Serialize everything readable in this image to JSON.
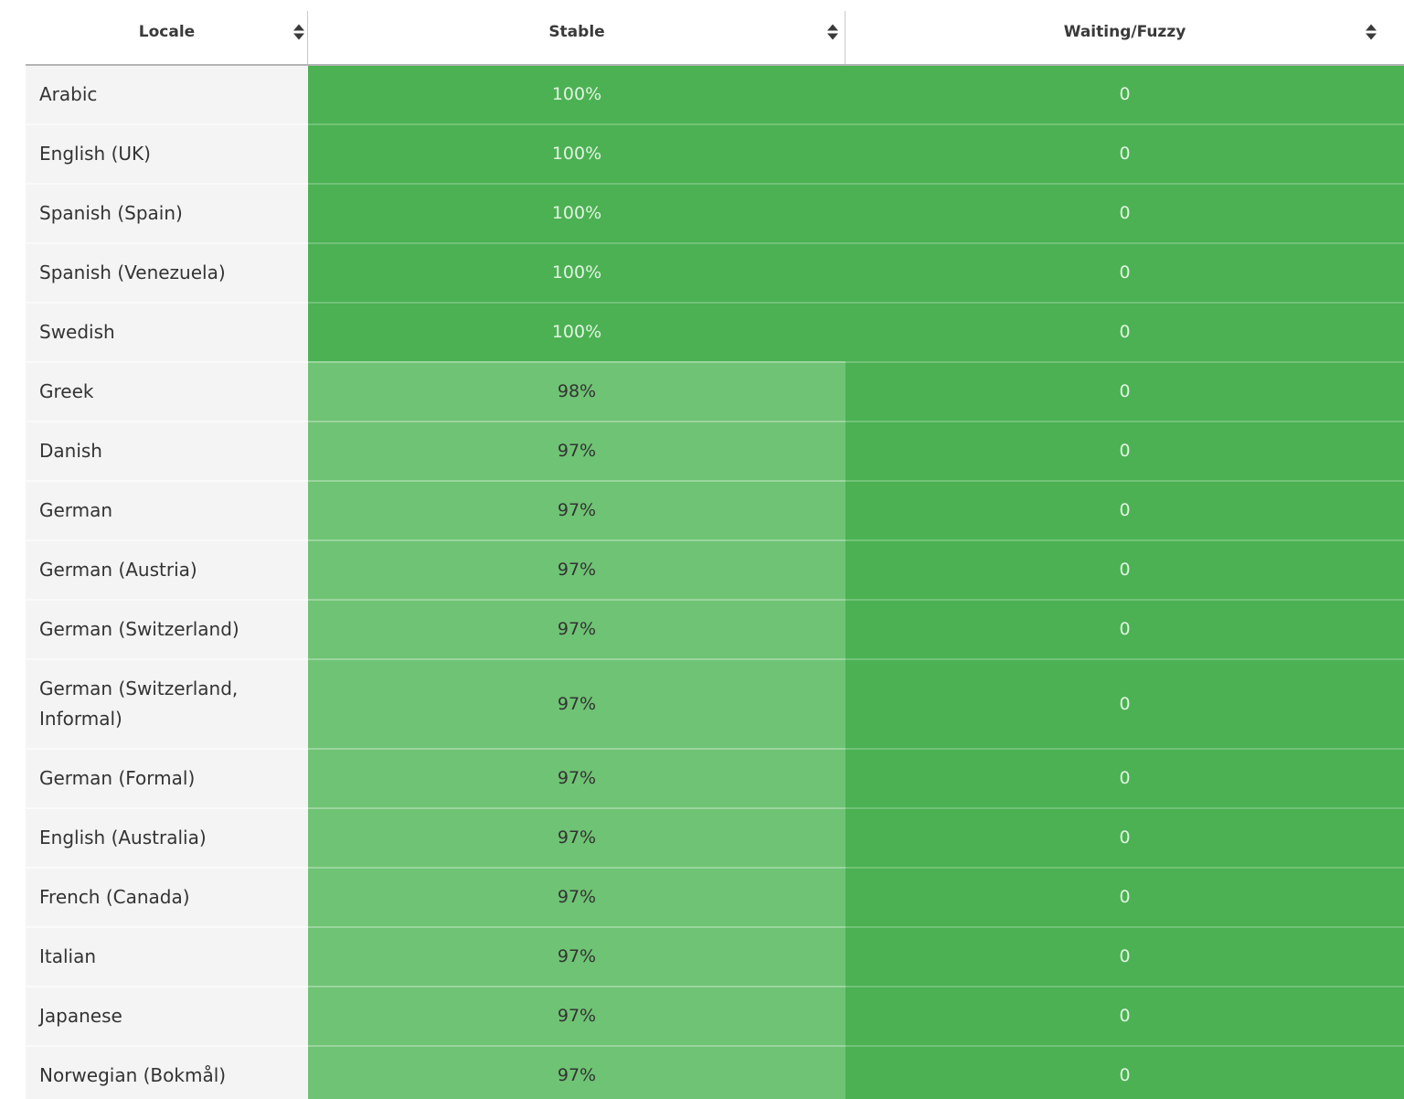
{
  "colors": {
    "green_dark": "#4BB153",
    "green_light": "#6FC374",
    "text_on_dark": "#E2F3E1",
    "text_on_light": "#333333",
    "locale_bg": "#F4F4F4",
    "header_text": "#3A3A3A"
  },
  "table": {
    "columns": [
      {
        "id": "locale",
        "label": "Locale",
        "icon": "sort-icon"
      },
      {
        "id": "stable",
        "label": "Stable",
        "icon": "sort-icon"
      },
      {
        "id": "waiting",
        "label": "Waiting/Fuzzy",
        "icon": "sort-icon"
      }
    ],
    "rows": [
      {
        "locale": "Arabic",
        "stable": "100%",
        "waiting": "0",
        "full": true
      },
      {
        "locale": "English (UK)",
        "stable": "100%",
        "waiting": "0",
        "full": true
      },
      {
        "locale": "Spanish (Spain)",
        "stable": "100%",
        "waiting": "0",
        "full": true
      },
      {
        "locale": "Spanish (Venezuela)",
        "stable": "100%",
        "waiting": "0",
        "full": true
      },
      {
        "locale": "Swedish",
        "stable": "100%",
        "waiting": "0",
        "full": true
      },
      {
        "locale": "Greek",
        "stable": "98%",
        "waiting": "0",
        "full": false
      },
      {
        "locale": "Danish",
        "stable": "97%",
        "waiting": "0",
        "full": false
      },
      {
        "locale": "German",
        "stable": "97%",
        "waiting": "0",
        "full": false
      },
      {
        "locale": "German (Austria)",
        "stable": "97%",
        "waiting": "0",
        "full": false
      },
      {
        "locale": "German (Switzerland)",
        "stable": "97%",
        "waiting": "0",
        "full": false
      },
      {
        "locale": "German (Switzerland, Informal)",
        "stable": "97%",
        "waiting": "0",
        "full": false
      },
      {
        "locale": "German (Formal)",
        "stable": "97%",
        "waiting": "0",
        "full": false
      },
      {
        "locale": "English (Australia)",
        "stable": "97%",
        "waiting": "0",
        "full": false
      },
      {
        "locale": "French (Canada)",
        "stable": "97%",
        "waiting": "0",
        "full": false
      },
      {
        "locale": "Italian",
        "stable": "97%",
        "waiting": "0",
        "full": false
      },
      {
        "locale": "Japanese",
        "stable": "97%",
        "waiting": "0",
        "full": false
      },
      {
        "locale": "Norwegian (Bokmål)",
        "stable": "97%",
        "waiting": "0",
        "full": false
      }
    ]
  }
}
